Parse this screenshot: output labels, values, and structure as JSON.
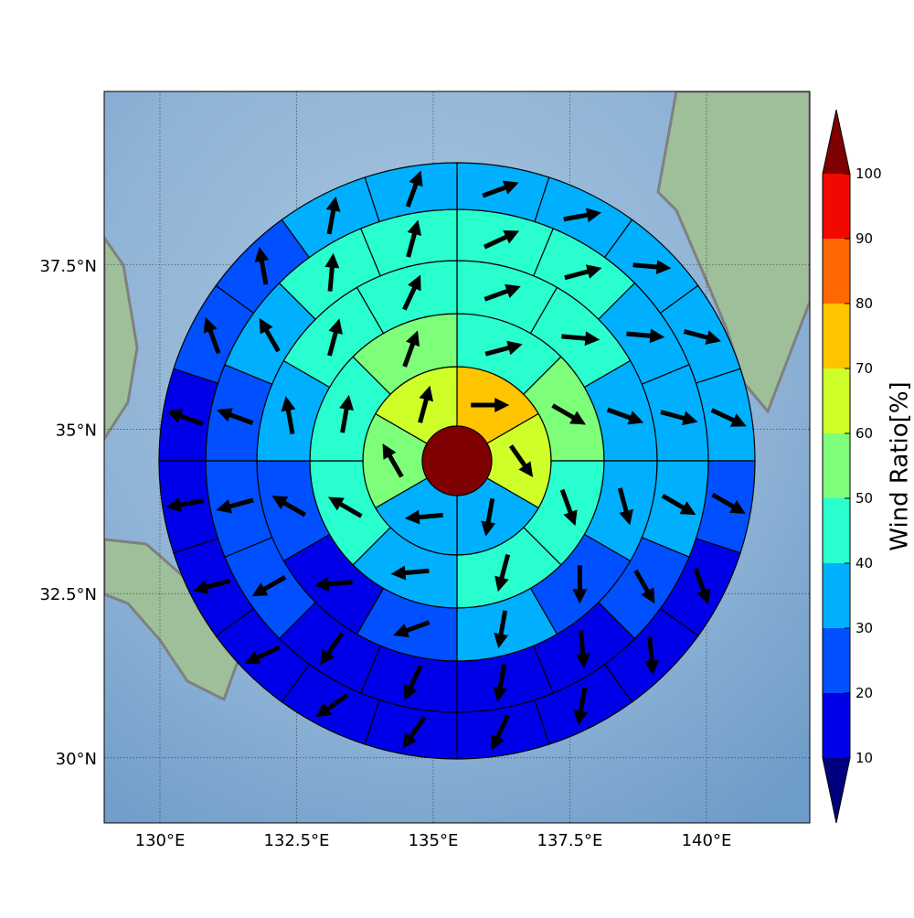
{
  "map": {
    "lon_range": [
      128.98,
      141.89
    ],
    "lat_range": [
      29.01,
      40.14
    ],
    "lon_ticks": [
      {
        "value": 130,
        "label": "130°E"
      },
      {
        "value": 132.5,
        "label": "132.5°E"
      },
      {
        "value": 135,
        "label": "135°E"
      },
      {
        "value": 137.5,
        "label": "137.5°E"
      },
      {
        "value": 140,
        "label": "140°E"
      }
    ],
    "lat_ticks": [
      {
        "value": 30,
        "label": "30°N"
      },
      {
        "value": 32.5,
        "label": "32.5°N"
      },
      {
        "value": 35,
        "label": "35°N"
      },
      {
        "value": 37.5,
        "label": "37.5°N"
      }
    ]
  },
  "center_value": 105,
  "rings": [
    {
      "values": [
        72,
        62,
        38,
        35,
        52,
        65
      ],
      "directions": [
        90,
        145,
        190,
        265,
        330,
        15
      ]
    },
    {
      "values": [
        45,
        55,
        42,
        40,
        35,
        42,
        45,
        55
      ],
      "directions": [
        75,
        120,
        160,
        195,
        265,
        300,
        10,
        20
      ]
    },
    {
      "values": [
        45,
        42,
        35,
        35,
        25,
        30,
        22,
        18,
        22,
        32,
        42,
        45
      ],
      "directions": [
        70,
        95,
        110,
        165,
        180,
        190,
        250,
        265,
        300,
        350,
        15,
        25
      ]
    },
    {
      "values": [
        40,
        40,
        35,
        35,
        35,
        22,
        18,
        18,
        15,
        18,
        22,
        22,
        25,
        32,
        40,
        40
      ],
      "directions": [
        65,
        75,
        95,
        105,
        120,
        150,
        175,
        190,
        205,
        215,
        240,
        255,
        290,
        330,
        5,
        15
      ]
    },
    {
      "values": [
        35,
        35,
        35,
        33,
        33,
        25,
        15,
        15,
        15,
        15,
        15,
        15,
        15,
        15,
        18,
        18,
        22,
        22,
        32,
        35
      ],
      "directions": [
        70,
        80,
        95,
        105,
        115,
        120,
        160,
        175,
        190,
        205,
        215,
        235,
        245,
        255,
        260,
        290,
        340,
        350,
        10,
        20
      ]
    }
  ],
  "colorbar": {
    "label": "Wind Ratio[%]",
    "ticks": [
      10,
      20,
      30,
      40,
      50,
      60,
      70,
      80,
      90,
      100
    ],
    "colors": [
      "#0000e8",
      "#0050ff",
      "#00b0ff",
      "#29ffce",
      "#7dff7a",
      "#ceff29",
      "#ffc400",
      "#ff6800",
      "#f10800"
    ],
    "under_color": "#00007f",
    "over_color": "#7f0000"
  }
}
